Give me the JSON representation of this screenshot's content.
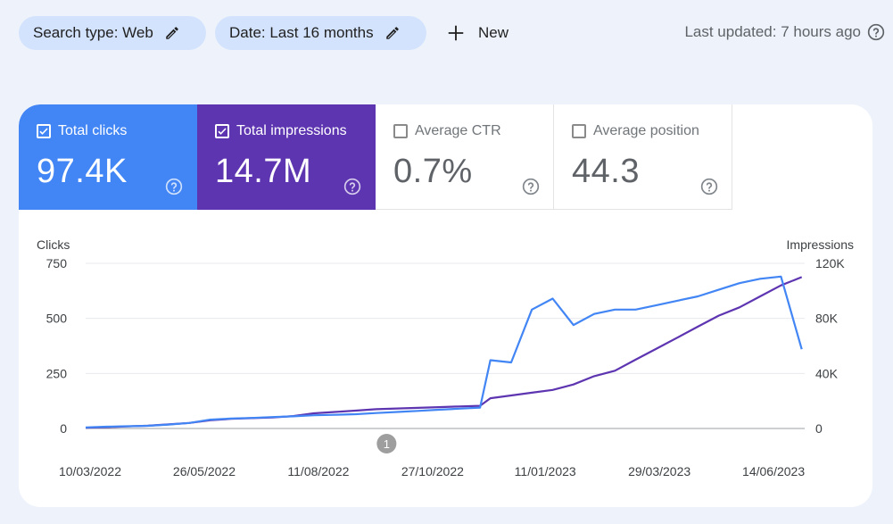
{
  "filters": {
    "search_type": "Search type: Web",
    "date": "Date: Last 16 months",
    "new_label": "New"
  },
  "last_updated": "Last updated: 7 hours ago",
  "metrics": {
    "clicks": {
      "label": "Total clicks",
      "value": "97.4K",
      "selected": true,
      "color": "#4285f4"
    },
    "impressions": {
      "label": "Total impressions",
      "value": "14.7M",
      "selected": true,
      "color": "#5e35b1"
    },
    "ctr": {
      "label": "Average CTR",
      "value": "0.7%",
      "selected": false
    },
    "position": {
      "label": "Average position",
      "value": "44.3",
      "selected": false
    }
  },
  "chart_data": {
    "type": "line",
    "left_axis_title": "Clicks",
    "right_axis_title": "Impressions",
    "left_ticks": [
      "0",
      "250",
      "500",
      "750"
    ],
    "left_tick_values": [
      0,
      250,
      500,
      750
    ],
    "right_ticks": [
      "0",
      "40K",
      "80K",
      "120K"
    ],
    "right_tick_values": [
      0,
      40000,
      80000,
      120000
    ],
    "ylim_left": [
      0,
      750
    ],
    "ylim_right": [
      0,
      120000
    ],
    "x_ticks": [
      "10/03/2022",
      "26/05/2022",
      "11/08/2022",
      "27/10/2022",
      "11/01/2023",
      "29/03/2023",
      "14/06/2023"
    ],
    "x_range": [
      "2022-03-07",
      "2023-07-05"
    ],
    "annotation": {
      "label": "1",
      "date": "2022-09-26"
    },
    "series": [
      {
        "name": "Clicks",
        "axis": "left",
        "color": "#4285f4",
        "x": [
          "2022-03-07",
          "2022-03-21",
          "2022-04-04",
          "2022-04-18",
          "2022-05-02",
          "2022-05-16",
          "2022-05-30",
          "2022-06-13",
          "2022-06-27",
          "2022-07-11",
          "2022-07-25",
          "2022-08-08",
          "2022-08-22",
          "2022-09-05",
          "2022-09-19",
          "2022-10-03",
          "2022-10-17",
          "2022-10-31",
          "2022-11-14",
          "2022-11-28",
          "2022-12-05",
          "2022-12-19",
          "2023-01-02",
          "2023-01-16",
          "2023-01-30",
          "2023-02-13",
          "2023-02-27",
          "2023-03-13",
          "2023-03-27",
          "2023-04-10",
          "2023-04-24",
          "2023-05-08",
          "2023-05-22",
          "2023-06-05",
          "2023-06-19",
          "2023-07-03"
        ],
        "values": [
          5,
          8,
          10,
          12,
          18,
          25,
          40,
          45,
          48,
          52,
          55,
          60,
          62,
          65,
          70,
          75,
          80,
          85,
          90,
          95,
          310,
          300,
          540,
          590,
          470,
          520,
          540,
          540,
          560,
          580,
          600,
          630,
          660,
          680,
          690,
          360
        ]
      },
      {
        "name": "Impressions",
        "axis": "right",
        "color": "#5e35b1",
        "x": [
          "2022-03-07",
          "2022-03-21",
          "2022-04-04",
          "2022-04-18",
          "2022-05-02",
          "2022-05-16",
          "2022-05-30",
          "2022-06-13",
          "2022-06-27",
          "2022-07-11",
          "2022-07-25",
          "2022-08-08",
          "2022-08-22",
          "2022-09-05",
          "2022-09-19",
          "2022-10-03",
          "2022-10-17",
          "2022-10-31",
          "2022-11-14",
          "2022-11-28",
          "2022-12-05",
          "2022-12-19",
          "2023-01-02",
          "2023-01-16",
          "2023-01-30",
          "2023-02-13",
          "2023-02-27",
          "2023-03-13",
          "2023-03-27",
          "2023-04-10",
          "2023-04-24",
          "2023-05-08",
          "2023-05-22",
          "2023-06-05",
          "2023-06-19",
          "2023-07-03"
        ],
        "values": [
          500,
          1000,
          1500,
          2000,
          3000,
          4000,
          6000,
          7000,
          7500,
          8000,
          9000,
          11000,
          12000,
          13000,
          14000,
          14500,
          15000,
          15500,
          16000,
          16500,
          22000,
          24000,
          26000,
          28000,
          32000,
          38000,
          42000,
          50000,
          58000,
          66000,
          74000,
          82000,
          88000,
          96000,
          104000,
          110000
        ]
      }
    ]
  }
}
